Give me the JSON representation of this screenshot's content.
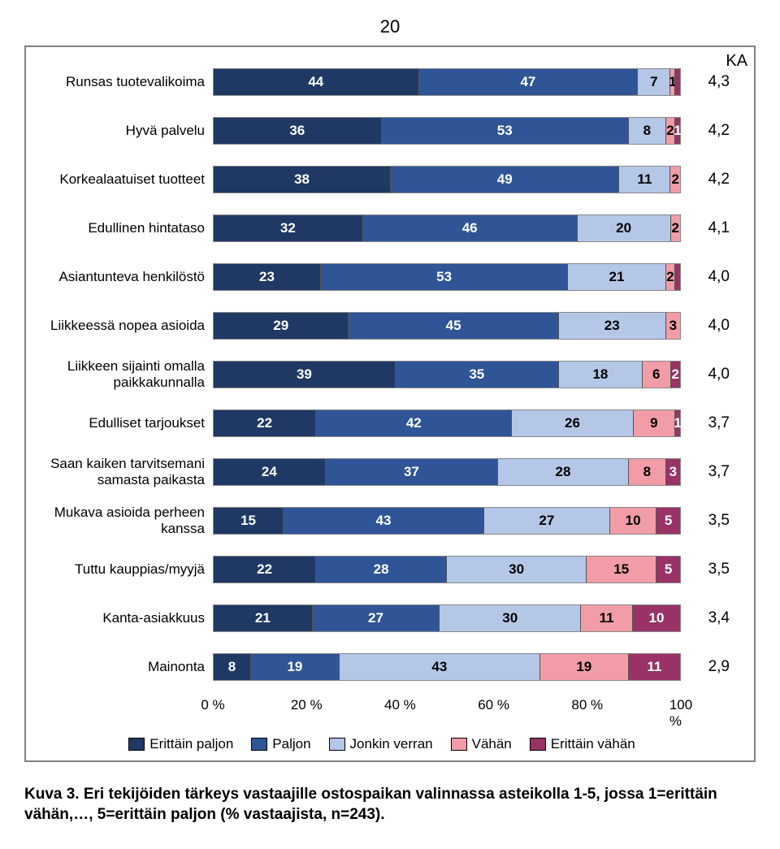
{
  "page_number": "20",
  "chart": {
    "type": "stacked-bar-horizontal",
    "ka_header": "KA",
    "xticks": [
      "0 %",
      "20 %",
      "40 %",
      "60 %",
      "80 %",
      "100 %"
    ],
    "colors": {
      "s5": "#203864",
      "s4": "#2f5597",
      "s3": "#b4c7e7",
      "s2": "#f19ca6",
      "s1": "#993366",
      "text_on_dark": "#ffffff",
      "text_on_light": "#000000"
    },
    "legend": [
      {
        "label": "Erittäin paljon",
        "colorkey": "s5"
      },
      {
        "label": "Paljon",
        "colorkey": "s4"
      },
      {
        "label": "Jonkin verran",
        "colorkey": "s3"
      },
      {
        "label": "Vähän",
        "colorkey": "s2"
      },
      {
        "label": "Erittäin vähän",
        "colorkey": "s1"
      }
    ],
    "rows": [
      {
        "label": "Runsas tuotevalikoima",
        "values": [
          44,
          47,
          7,
          1,
          1
        ],
        "shown": [
          44,
          47,
          7,
          1,
          null
        ],
        "ka": "4,3"
      },
      {
        "label": "Hyvä palvelu",
        "values": [
          36,
          53,
          8,
          2,
          1
        ],
        "shown": [
          36,
          53,
          8,
          2,
          1
        ],
        "ka": "4,2"
      },
      {
        "label": "Korkealaatuiset tuotteet",
        "values": [
          38,
          49,
          11,
          2,
          0
        ],
        "shown": [
          38,
          49,
          11,
          2,
          null
        ],
        "ka": "4,2"
      },
      {
        "label": "Edullinen hintataso",
        "values": [
          32,
          46,
          20,
          2,
          0
        ],
        "shown": [
          32,
          46,
          20,
          2,
          null
        ],
        "ka": "4,1"
      },
      {
        "label": "Asiantunteva henkilöstö",
        "values": [
          23,
          53,
          21,
          2,
          1
        ],
        "shown": [
          23,
          53,
          21,
          2,
          null
        ],
        "ka": "4,0"
      },
      {
        "label": "Liikkeessä nopea asioida",
        "values": [
          29,
          45,
          23,
          3,
          0
        ],
        "shown": [
          29,
          45,
          23,
          3,
          null
        ],
        "ka": "4,0"
      },
      {
        "label": "Liikkeen sijainti omalla paikkakunnalla",
        "values": [
          39,
          35,
          18,
          6,
          2
        ],
        "shown": [
          39,
          35,
          18,
          6,
          2
        ],
        "ka": "4,0"
      },
      {
        "label": "Edulliset tarjoukset",
        "values": [
          22,
          42,
          26,
          9,
          1
        ],
        "shown": [
          22,
          42,
          26,
          9,
          1
        ],
        "ka": "3,7"
      },
      {
        "label": "Saan kaiken tarvitsemani samasta paikasta",
        "values": [
          24,
          37,
          28,
          8,
          3
        ],
        "shown": [
          24,
          37,
          28,
          8,
          3
        ],
        "ka": "3,7"
      },
      {
        "label": "Mukava asioida perheen kanssa",
        "values": [
          15,
          43,
          27,
          10,
          5
        ],
        "shown": [
          15,
          43,
          27,
          10,
          5
        ],
        "ka": "3,5"
      },
      {
        "label": "Tuttu kauppias/myyjä",
        "values": [
          22,
          28,
          30,
          15,
          5
        ],
        "shown": [
          22,
          28,
          30,
          15,
          5
        ],
        "ka": "3,5"
      },
      {
        "label": "Kanta-asiakkuus",
        "values": [
          21,
          27,
          30,
          11,
          10
        ],
        "shown": [
          21,
          27,
          30,
          11,
          10
        ],
        "ka": "3,4"
      },
      {
        "label": "Mainonta",
        "values": [
          8,
          19,
          43,
          19,
          11
        ],
        "shown": [
          8,
          19,
          43,
          19,
          11
        ],
        "ka": "2,9"
      }
    ]
  },
  "caption": "Kuva 3. Eri tekijöiden tärkeys vastaajille ostospaikan valinnassa asteikolla 1-5, jossa 1=erittäin vähän,…, 5=erittäin paljon (% vastaajista, n=243)."
}
